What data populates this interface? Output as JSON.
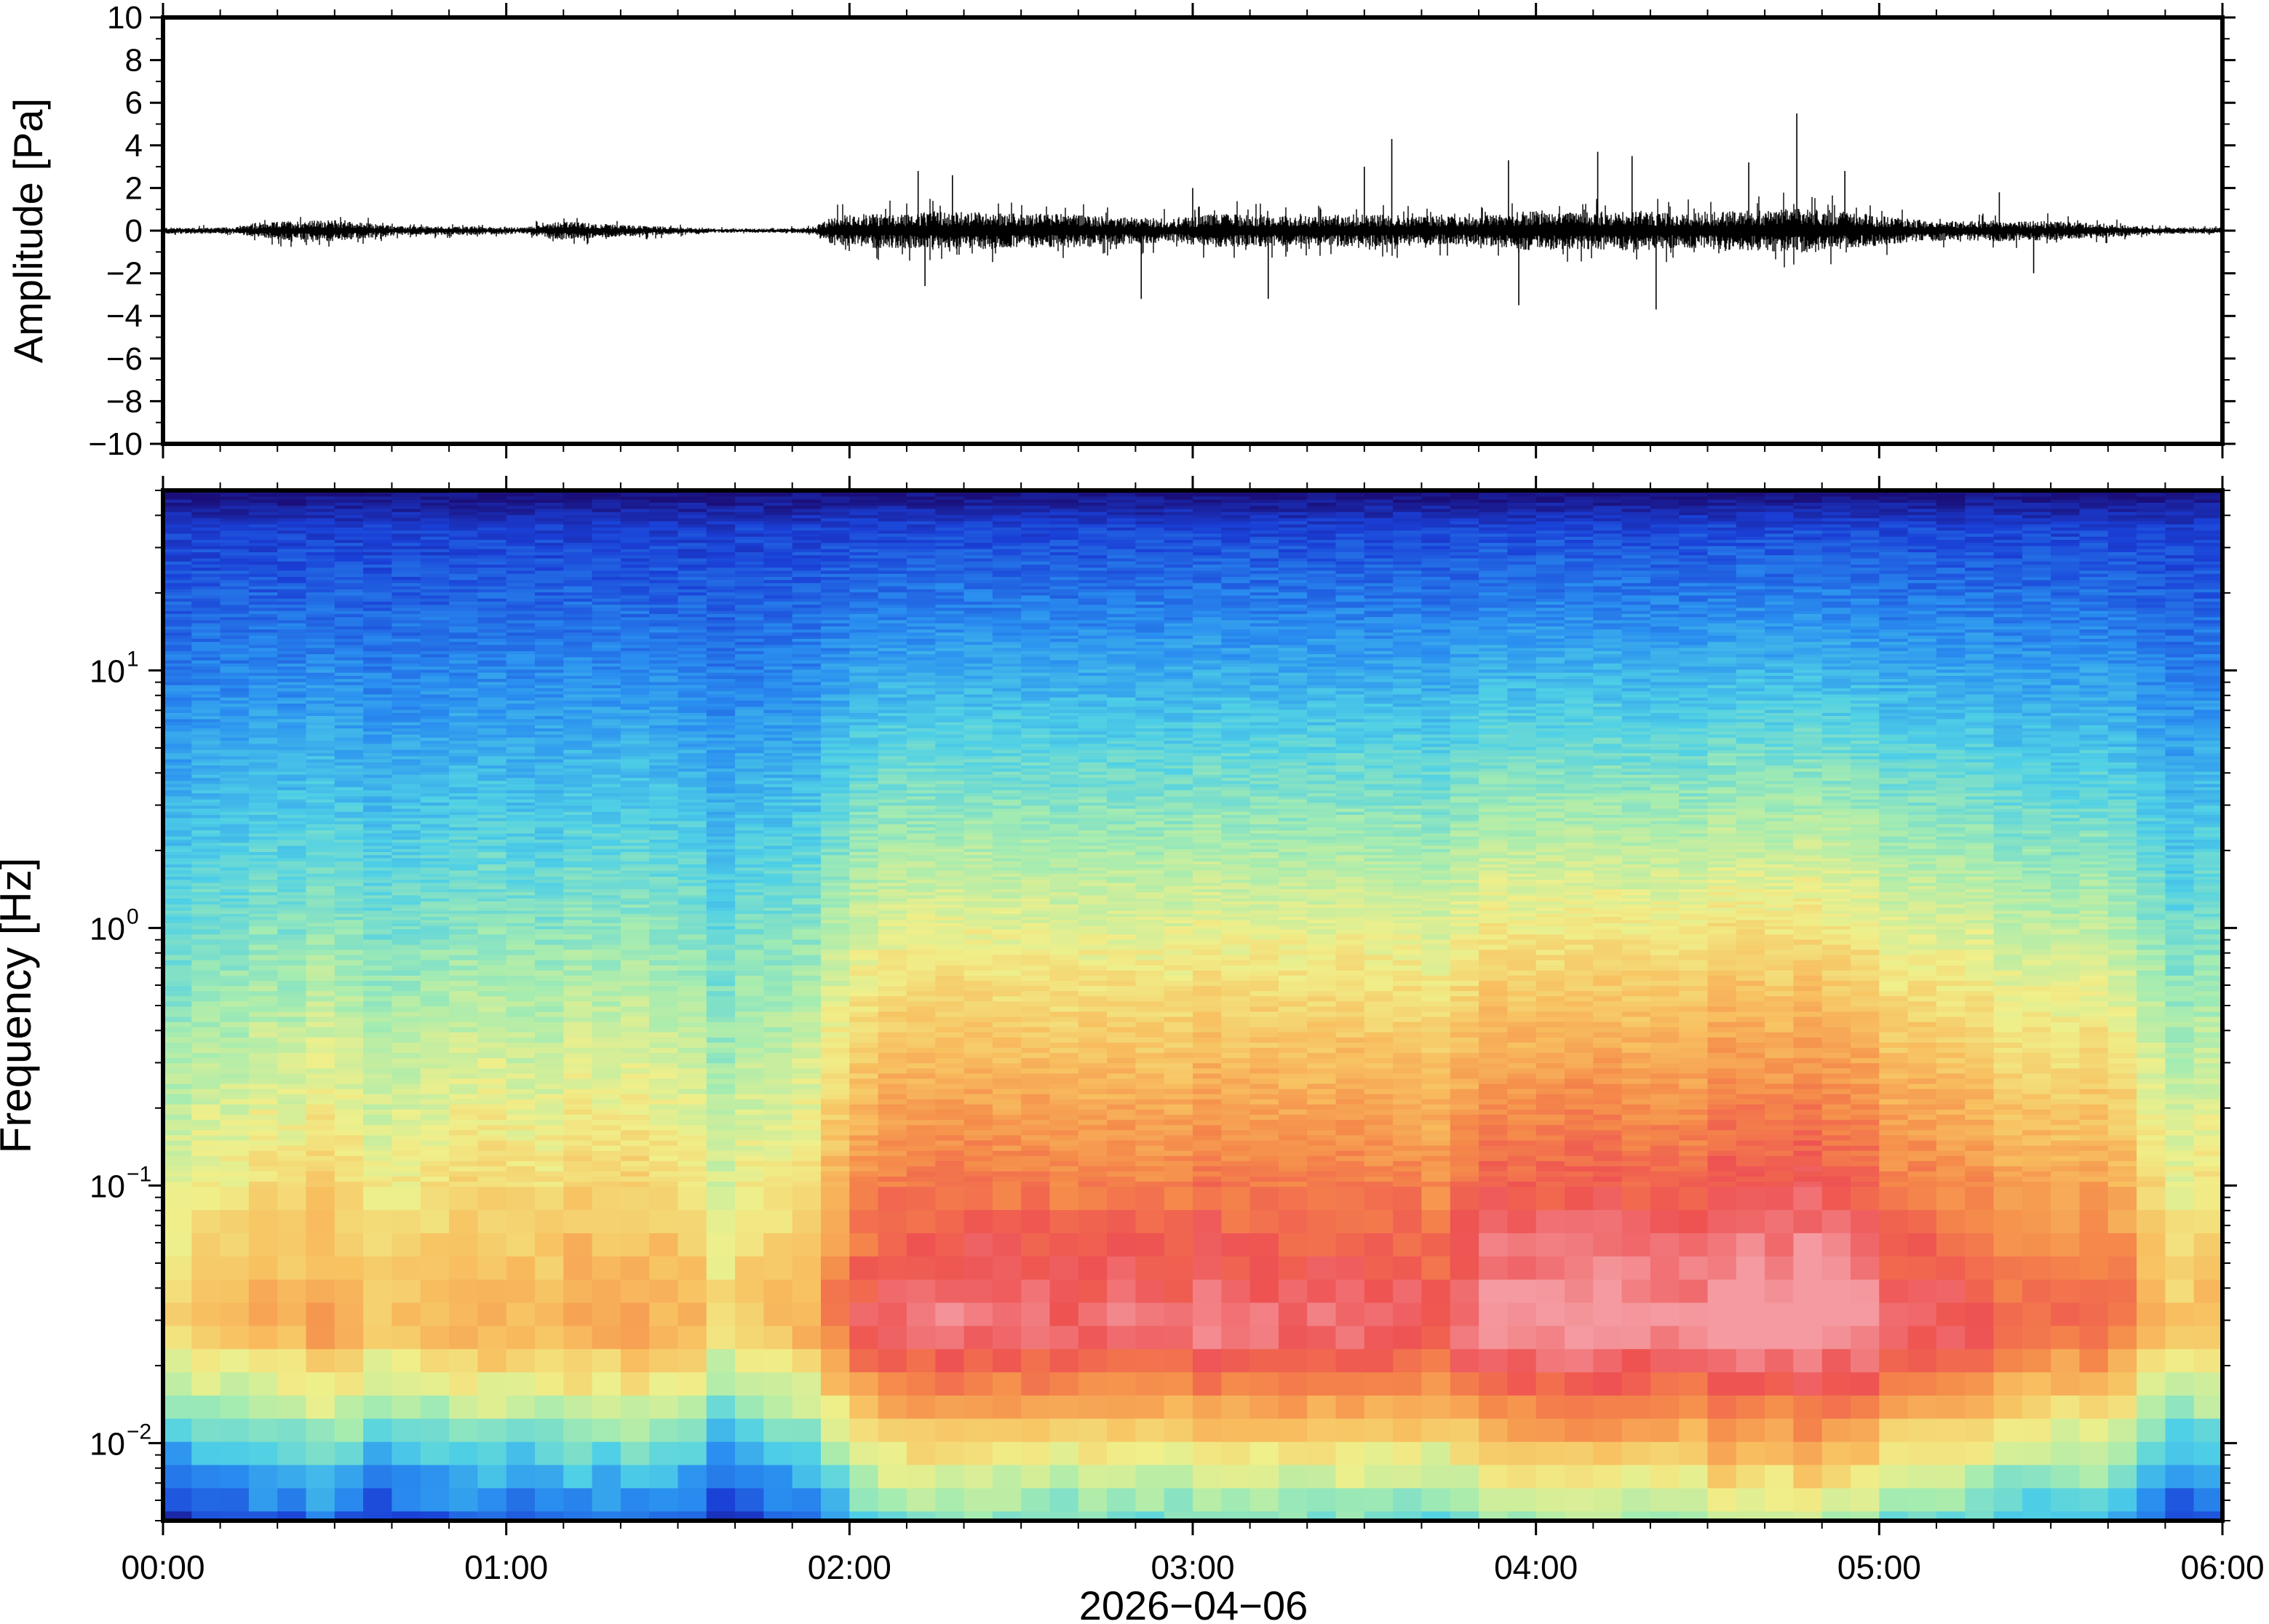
{
  "chart_data": [
    {
      "type": "line",
      "ylabel": "Amplitude [Pa]",
      "ylim": [
        -10,
        10
      ],
      "yticks": [
        "10",
        "8",
        "6",
        "4",
        "2",
        "0",
        "−2",
        "−4",
        "−6",
        "−8",
        "−10"
      ],
      "ytick_values": [
        10,
        8,
        6,
        4,
        2,
        0,
        -2,
        -4,
        -6,
        -8,
        -10
      ],
      "xlim_hours": [
        0,
        6
      ],
      "grid": false,
      "series": [
        {
          "color": "#000000",
          "envelope_x_hours": [
            0.0,
            0.2,
            0.35,
            0.5,
            0.7,
            0.9,
            1.05,
            1.15,
            1.3,
            1.45,
            1.6,
            1.8,
            1.9,
            1.95,
            2.05,
            2.2,
            2.35,
            2.5,
            2.65,
            2.8,
            2.95,
            3.05,
            3.2,
            3.35,
            3.5,
            3.65,
            3.8,
            3.9,
            4.0,
            4.1,
            4.2,
            4.3,
            4.4,
            4.55,
            4.7,
            4.8,
            4.9,
            5.05,
            5.2,
            5.35,
            5.5,
            5.65,
            5.8,
            6.0
          ],
          "envelope_pa": [
            0.15,
            0.15,
            0.45,
            0.5,
            0.2,
            0.2,
            0.15,
            0.45,
            0.3,
            0.2,
            0.1,
            0.1,
            0.15,
            0.7,
            0.8,
            0.85,
            0.9,
            0.8,
            0.8,
            0.65,
            0.55,
            0.8,
            0.75,
            0.7,
            0.8,
            0.7,
            0.65,
            0.8,
            0.95,
            0.85,
            0.9,
            0.95,
            0.8,
            0.9,
            1.0,
            1.05,
            0.9,
            0.6,
            0.45,
            0.5,
            0.45,
            0.35,
            0.15,
            0.15
          ],
          "spikes": [
            {
              "x": 2.2,
              "y": 2.8
            },
            {
              "x": 2.22,
              "y": -2.6
            },
            {
              "x": 2.3,
              "y": 2.6
            },
            {
              "x": 2.85,
              "y": -3.2
            },
            {
              "x": 3.0,
              "y": 2.0
            },
            {
              "x": 3.22,
              "y": -3.2
            },
            {
              "x": 3.5,
              "y": 3.0
            },
            {
              "x": 3.58,
              "y": 4.3
            },
            {
              "x": 3.92,
              "y": 3.3
            },
            {
              "x": 3.95,
              "y": -3.5
            },
            {
              "x": 4.18,
              "y": 3.7
            },
            {
              "x": 4.28,
              "y": 3.5
            },
            {
              "x": 4.35,
              "y": -3.7
            },
            {
              "x": 4.62,
              "y": 3.2
            },
            {
              "x": 4.76,
              "y": 5.5
            },
            {
              "x": 4.9,
              "y": 2.8
            },
            {
              "x": 5.35,
              "y": 1.8
            },
            {
              "x": 5.45,
              "y": -2.0
            }
          ]
        }
      ]
    },
    {
      "type": "heatmap",
      "ylabel": "Frequency [Hz]",
      "xlabel": "2026−04−06",
      "y_scale": "log",
      "ylim": [
        0.005,
        50
      ],
      "xlim_hours": [
        0,
        6
      ],
      "yticks": [
        {
          "value": 10,
          "base": "10",
          "exp": "1"
        },
        {
          "value": 1,
          "base": "10",
          "exp": "0"
        },
        {
          "value": 0.1,
          "base": "10",
          "exp": "−1"
        },
        {
          "value": 0.01,
          "base": "10",
          "exp": "−2"
        }
      ],
      "xticks": [
        "00:00",
        "01:00",
        "02:00",
        "03:00",
        "04:00",
        "05:00",
        "06:00"
      ],
      "xtick_hours": [
        0,
        1,
        2,
        3,
        4,
        5,
        6
      ],
      "colormap": [
        "#1a0f7a",
        "#1a3fd6",
        "#2a8ff0",
        "#4fd0e6",
        "#a6ecb0",
        "#f0ef8a",
        "#f8c060",
        "#f58a4a",
        "#ee5252",
        "#f49aa0"
      ],
      "colormap_range": [
        0,
        1
      ],
      "activity_level_by_time": {
        "x_hours": [
          0.0,
          0.25,
          0.5,
          0.6,
          0.75,
          1.0,
          1.25,
          1.5,
          1.6,
          1.75,
          1.9,
          2.0,
          2.25,
          2.5,
          2.75,
          2.95,
          3.2,
          3.5,
          3.65,
          3.8,
          3.95,
          4.2,
          4.4,
          4.6,
          4.8,
          5.0,
          5.2,
          5.5,
          5.7,
          5.85,
          6.0
        ],
        "level": [
          0.35,
          0.45,
          0.5,
          0.38,
          0.48,
          0.45,
          0.52,
          0.5,
          0.3,
          0.4,
          0.5,
          0.75,
          0.78,
          0.76,
          0.8,
          0.78,
          0.82,
          0.8,
          0.72,
          0.82,
          0.88,
          0.86,
          0.85,
          0.9,
          0.92,
          0.82,
          0.72,
          0.68,
          0.6,
          0.42,
          0.4
        ]
      }
    }
  ]
}
